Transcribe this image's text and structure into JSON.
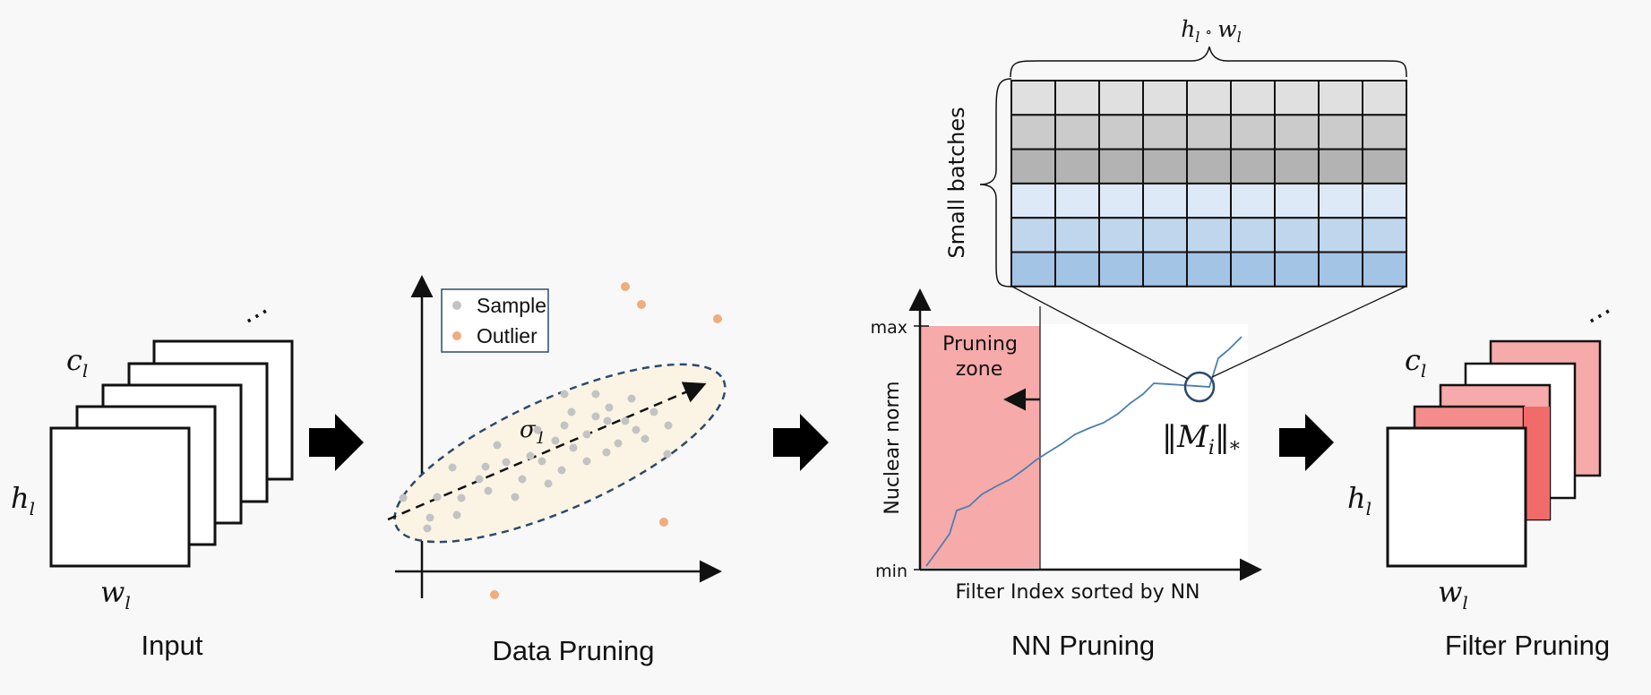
{
  "input": {
    "caption": "Input",
    "c_label": "c",
    "h_label": "h",
    "w_label": "w",
    "subscript": "l",
    "dots": "⋯"
  },
  "data_pruning": {
    "caption": "Data Pruning",
    "sigma_label": "σ",
    "sigma_sub": "1",
    "legend_sample": "Sample",
    "legend_outlier": "Outlier",
    "colors": {
      "sample": "#c3c3c3",
      "outlier": "#f0ac7c",
      "ellipse_fill": "#fbf4e4",
      "ellipse_stroke": "#2c4a6c"
    }
  },
  "nn_pruning": {
    "caption": "NN Pruning",
    "y_axis_label": "Nuclear norm",
    "x_axis_label": "Filter Index sorted by NN",
    "max_label": "max",
    "min_label": "min",
    "zone_label_1": "Pruning",
    "zone_label_2": "zone",
    "norm_label": "‖M",
    "norm_sub": "i",
    "norm_end": "‖",
    "norm_star": "*",
    "batch_label": "Small batches",
    "hw_label_h": "h",
    "hw_label_sep": "∘",
    "hw_label_w": "w",
    "hw_sub": "l",
    "colors": {
      "zone": "#f7aaaa",
      "curve": "#4a7fb0"
    },
    "grid_row_colors": [
      "#e0e0e0",
      "#cbcbcb",
      "#b3b3b3",
      "#dde9f6",
      "#bfd6ec",
      "#a4c4e6"
    ]
  },
  "filter_pruning": {
    "caption": "Filter Pruning",
    "c_label": "c",
    "h_label": "h",
    "w_label": "w",
    "subscript": "l",
    "dots": "⋯",
    "colors": {
      "back": "#f7aaaa",
      "mid": "#f58c8c",
      "front_overlap": "#f26b6b"
    }
  }
}
